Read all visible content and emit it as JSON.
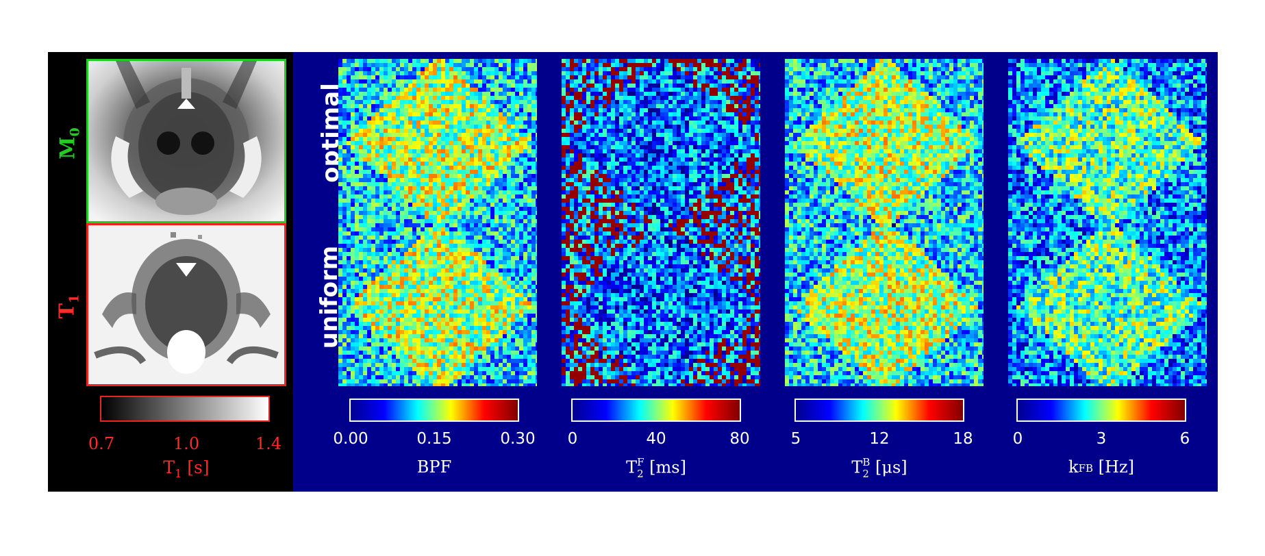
{
  "left": {
    "m0_label": "M",
    "m0_sub": "0",
    "t1_label": "T",
    "t1_sub": "1",
    "t1_colorbar": {
      "ticks": [
        "0.7",
        "1.0",
        "1.4"
      ],
      "label_main": "T",
      "label_sub": "1",
      "label_units": " [s]"
    },
    "colors": {
      "m0_border": "#22cc22",
      "t1_border": "#ee2222",
      "label_red": "#ff2a2a",
      "label_green": "#22cc22"
    }
  },
  "rows": {
    "top": "optimal",
    "bottom": "uniform"
  },
  "maps": [
    {
      "name": "BPF",
      "ticks": [
        "0.00",
        "0.15",
        "0.30"
      ],
      "label_main": "BPF",
      "label_sub": "",
      "label_sup": "",
      "label_units": ""
    },
    {
      "name": "T2F",
      "ticks": [
        "0",
        "40",
        "80"
      ],
      "label_main": "T",
      "label_sub": "2",
      "label_sup": "F",
      "label_units": " [ms]"
    },
    {
      "name": "T2B",
      "ticks": [
        "5",
        "12",
        "18"
      ],
      "label_main": "T",
      "label_sub": "2",
      "label_sup": "B",
      "label_units": " [μs]"
    },
    {
      "name": "kFB",
      "ticks": [
        "0",
        "3",
        "6"
      ],
      "label_main": "k",
      "label_sub": "FB",
      "label_sup": "",
      "label_units": " [Hz]"
    }
  ],
  "colormap": {
    "type": "jet",
    "background": "#00008b"
  }
}
